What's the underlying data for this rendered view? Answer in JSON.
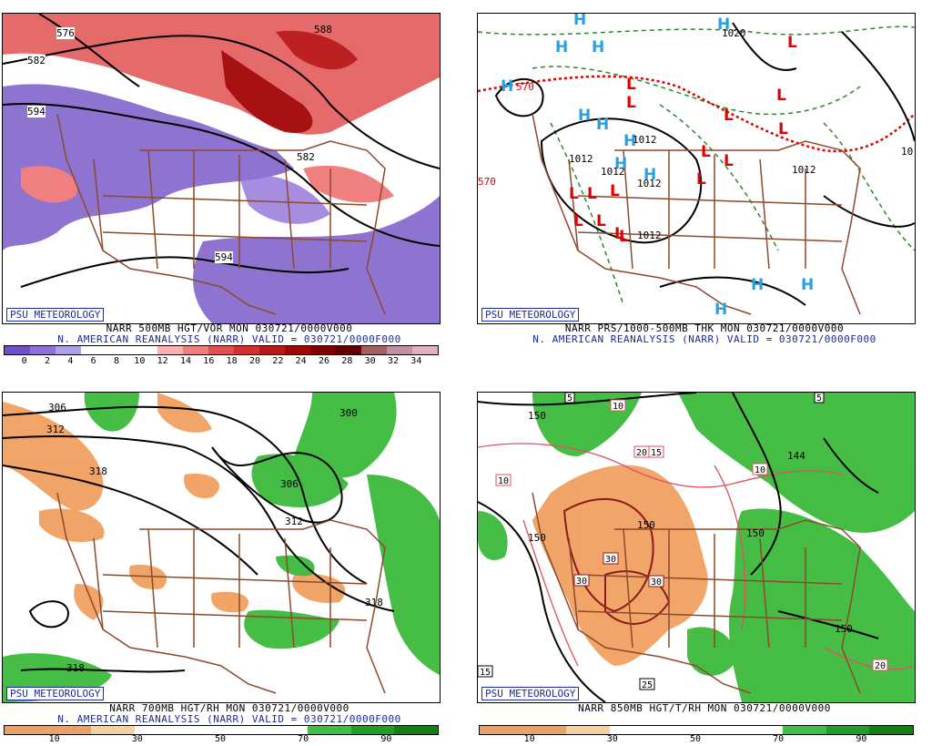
{
  "panels": [
    {
      "id": "p500",
      "badge": "PSU METEOROLOGY",
      "caption1": "NARR 500MB HGT/VOR MON 030721/0000V000",
      "caption2": "N. AMERICAN REANALYSIS (NARR) VALID = 030721/0000F000",
      "contour_labels": [
        "576",
        "582",
        "594",
        "588",
        "582",
        "594"
      ],
      "colorbar": {
        "ticks": [
          "0",
          "2",
          "4",
          "6",
          "8",
          "10",
          "12",
          "14",
          "16",
          "18",
          "20",
          "22",
          "24",
          "26",
          "28",
          "30",
          "32",
          "34"
        ],
        "colors": [
          "#7050c8",
          "#9070d8",
          "#b0a0e8",
          "#ffffff",
          "#ffffff",
          "#ffffff",
          "#ffb0b0",
          "#f08080",
          "#e05050",
          "#d03030",
          "#b81818",
          "#a00808",
          "#800000",
          "#600000",
          "#a06060",
          "#c090a0",
          "#e0b0c0"
        ]
      }
    },
    {
      "id": "pprs",
      "badge": "PSU METEOROLOGY",
      "caption1": "NARR PRS/1000-500MB THK MON 030721/0000V000",
      "caption2": "N. AMERICAN REANALYSIS (NARR) VALID = 030721/0000F000",
      "contour_labels": [
        "1020",
        "1012",
        "1012",
        "1012",
        "1012",
        "1012",
        "1012",
        "570",
        "570",
        "10"
      ],
      "highs": 13,
      "lows": 16,
      "high_label": "H",
      "low_label": "L"
    },
    {
      "id": "p700",
      "badge": "PSU METEOROLOGY",
      "caption1": "NARR 700MB HGT/RH MON 030721/0000V000",
      "caption2": "N. AMERICAN REANALYSIS (NARR) VALID = 030721/0000F000",
      "contour_labels": [
        "306",
        "312",
        "318",
        "300",
        "306",
        "312",
        "318",
        "318"
      ],
      "colorbar": {
        "ticks": [
          "10",
          "30",
          "50",
          "70",
          "90"
        ],
        "colors": [
          "#f0a060",
          "#f0a060",
          "#f8d0a0",
          "#ffffff",
          "#ffffff",
          "#ffffff",
          "#ffffff",
          "#40c040",
          "#20a020",
          "#108010"
        ]
      }
    },
    {
      "id": "p850",
      "badge": "PSU METEOROLOGY",
      "caption1": "NARR 850MB HGT/T/RH MON 030721/0000V000",
      "contour_labels": [
        "150",
        "144",
        "150",
        "150",
        "150",
        "150",
        "30",
        "30",
        "30",
        "20",
        "10",
        "10",
        "10",
        "15",
        "20",
        "25",
        "5",
        "5",
        "15"
      ],
      "colorbar": {
        "ticks": [
          "10",
          "30",
          "50",
          "70",
          "90"
        ],
        "colors": [
          "#f0a060",
          "#f0a060",
          "#f8d0a0",
          "#ffffff",
          "#ffffff",
          "#ffffff",
          "#ffffff",
          "#40c040",
          "#20a020",
          "#108010"
        ]
      }
    }
  ],
  "colors": {
    "badge": "#1a2a9a",
    "map": "#8b4a2b",
    "green_rh": "#3cba3c",
    "orange_rh": "#f0a060",
    "vort_red": "#e05050",
    "vort_purple": "#7a5cc8",
    "high": "#2aa0e0",
    "low": "#e00000"
  }
}
